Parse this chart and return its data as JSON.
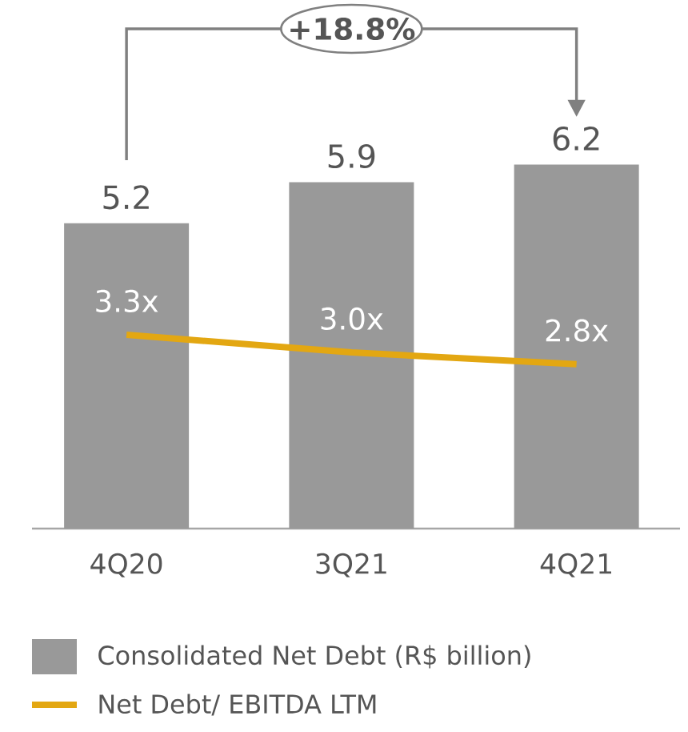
{
  "chart_data": {
    "type": "bar",
    "categories": [
      "4Q20",
      "3Q21",
      "4Q21"
    ],
    "series": [
      {
        "name": "Consolidated Net Debt (R$ billion)",
        "color": "#999999",
        "values": [
          5.2,
          5.9,
          6.2
        ],
        "value_labels": [
          "5.2",
          "5.9",
          "6.2"
        ]
      },
      {
        "name": "Net Debt/ EBITDA LTM",
        "type": "line",
        "color": "#e3a712",
        "values": [
          3.3,
          3.0,
          2.8
        ],
        "value_labels": [
          "3.3x",
          "3.0x",
          "2.8x"
        ]
      }
    ],
    "annotations": [
      "+18.8%"
    ],
    "legend": "bottom",
    "tick_labels": "x",
    "marker": "none"
  }
}
